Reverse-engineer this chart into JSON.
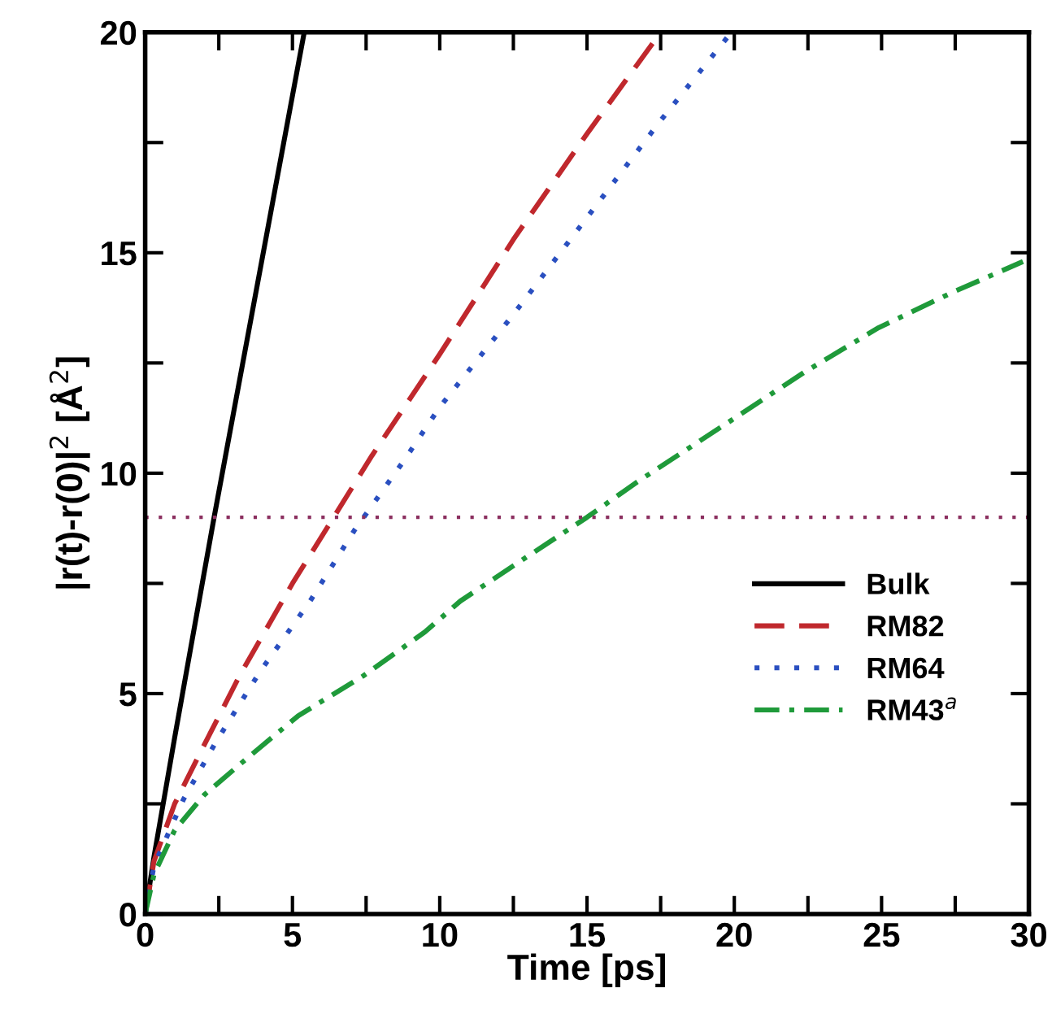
{
  "chart_data": {
    "type": "line",
    "xlabel": "Time [ps]",
    "ylabel": "|r(t)-r(0)|$^{2}$ [Å$^{2}$]",
    "xlim": [
      0,
      30
    ],
    "ylim": [
      0,
      20
    ],
    "xticks": [
      0,
      {
        "value": 2.5,
        "label": null
      },
      5,
      {
        "value": 7.5,
        "label": null
      },
      10,
      {
        "value": 12.5,
        "label": null
      },
      15,
      {
        "value": 17.5,
        "label": null
      },
      20,
      {
        "value": 22.5,
        "label": null
      },
      25,
      {
        "value": 27.5,
        "label": null
      },
      30
    ],
    "yticks": [
      0,
      {
        "value": 2.5,
        "label": null
      },
      5,
      {
        "value": 7.5,
        "label": null
      },
      10,
      {
        "value": 12.5,
        "label": null
      },
      15,
      {
        "value": 17.5,
        "label": null
      },
      20
    ],
    "grid": false,
    "legend": "right",
    "ref_lines": [
      {
        "axis": "y",
        "value": 9,
        "color": "#8b2f5f",
        "line_style": "dotted"
      }
    ],
    "series": [
      {
        "name": "Bulk",
        "color": "#000000",
        "line_style": "solid",
        "x": [
          0,
          0.3,
          1,
          2.34,
          5.4
        ],
        "values": [
          0,
          1.3,
          4.0,
          9,
          20
        ]
      },
      {
        "name": "RM82",
        "color": "#c0282d",
        "line_style": "dashed",
        "x": [
          0,
          0.3,
          1,
          1.9,
          3.2,
          5,
          6.4,
          7.7,
          10,
          12.5,
          15,
          17.5
        ],
        "values": [
          0,
          1.2,
          2.5,
          3.7,
          5.4,
          7.5,
          9,
          10.4,
          12.7,
          15.3,
          17.7,
          20
        ]
      },
      {
        "name": "RM64",
        "color": "#2a4fc0",
        "line_style": "dotted",
        "x": [
          0,
          0.3,
          1.3,
          2.4,
          3.9,
          5.6,
          7.1,
          8.8,
          10,
          12.5,
          15,
          17.5,
          19.9
        ],
        "values": [
          0,
          1.1,
          2.6,
          3.9,
          5.5,
          7.1,
          8.7,
          10.3,
          11.5,
          13.6,
          15.8,
          18,
          20
        ]
      },
      {
        "name": "RM43$^{a}$",
        "color": "#1f9a3a",
        "line_style": "dashdot",
        "x": [
          0,
          0.3,
          1,
          2,
          3.4,
          5.2,
          7.4,
          9.5,
          10.7,
          12.5,
          15,
          16.7,
          19.9,
          22.4,
          24.9,
          27.4,
          29.8
        ],
        "values": [
          0,
          0.9,
          1.9,
          2.7,
          3.5,
          4.5,
          5.4,
          6.4,
          7.1,
          7.9,
          9,
          9.8,
          11.2,
          12.3,
          13.3,
          14.1,
          14.8
        ]
      }
    ]
  }
}
